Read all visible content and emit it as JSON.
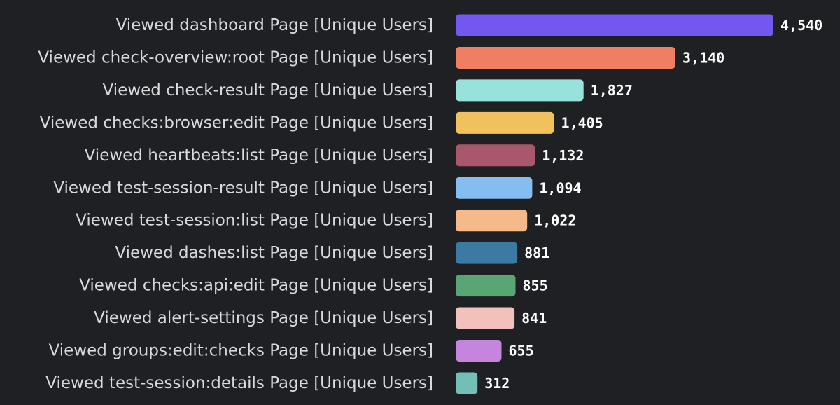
{
  "chart_data": {
    "type": "bar",
    "orientation": "horizontal",
    "title": "",
    "xlabel": "",
    "ylabel": "",
    "grid": false,
    "legend": "none",
    "xlim": [
      0,
      4540
    ],
    "categories": [
      "Viewed dashboard Page [Unique Users]",
      "Viewed check-overview:root Page [Unique Users]",
      "Viewed check-result Page [Unique Users]",
      "Viewed checks:browser:edit Page [Unique Users]",
      "Viewed heartbeats:list Page [Unique Users]",
      "Viewed test-session-result Page [Unique Users]",
      "Viewed test-session:list Page [Unique Users]",
      "Viewed dashes:list Page [Unique Users]",
      "Viewed checks:api:edit Page [Unique Users]",
      "Viewed alert-settings Page [Unique Users]",
      "Viewed groups:edit:checks Page [Unique Users]",
      "Viewed test-session:details Page [Unique Users]"
    ],
    "values": [
      4540,
      3140,
      1827,
      1405,
      1132,
      1094,
      1022,
      881,
      855,
      841,
      655,
      312
    ],
    "value_labels": [
      "4,540",
      "3,140",
      "1,827",
      "1,405",
      "1,132",
      "1,094",
      "1,022",
      "881",
      "855",
      "841",
      "655",
      "312"
    ],
    "colors": [
      "#7456f1",
      "#ef7e63",
      "#98e2dc",
      "#f1c25c",
      "#a9586c",
      "#86bdf1",
      "#f6b98a",
      "#3a7aa3",
      "#5aa574",
      "#f3c1bb",
      "#c685dc",
      "#73bfb5"
    ]
  }
}
